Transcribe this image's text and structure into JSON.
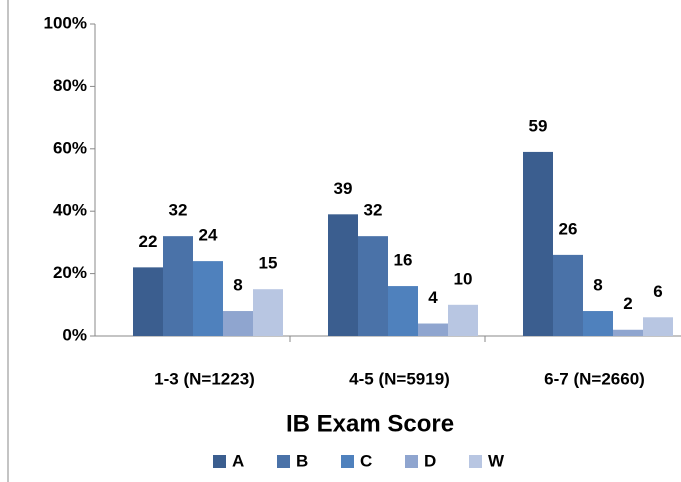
{
  "chart_data": {
    "type": "bar",
    "categories": [
      "1-3 (N=1223)",
      "4-5 (N=5919)",
      "6-7 (N=2660)"
    ],
    "series": [
      {
        "name": "A",
        "color": "#3b5e8f",
        "values": [
          22,
          39,
          59
        ]
      },
      {
        "name": "B",
        "color": "#4a72a8",
        "values": [
          32,
          32,
          26
        ]
      },
      {
        "name": "C",
        "color": "#4f81bd",
        "values": [
          24,
          16,
          8
        ]
      },
      {
        "name": "D",
        "color": "#8fa5cf",
        "values": [
          8,
          4,
          2
        ]
      },
      {
        "name": "W",
        "color": "#b8c6e2",
        "values": [
          15,
          10,
          6
        ]
      }
    ],
    "xlabel": "IB Exam Score",
    "ylim": [
      0,
      100
    ],
    "yticks": [
      {
        "value": 0,
        "label": "0%"
      },
      {
        "value": 20,
        "label": "20%"
      },
      {
        "value": 40,
        "label": "40%"
      },
      {
        "value": 60,
        "label": "60%"
      },
      {
        "value": 80,
        "label": "80%"
      },
      {
        "value": 100,
        "label": "100%"
      }
    ],
    "legend": "bottom",
    "grid": false
  }
}
